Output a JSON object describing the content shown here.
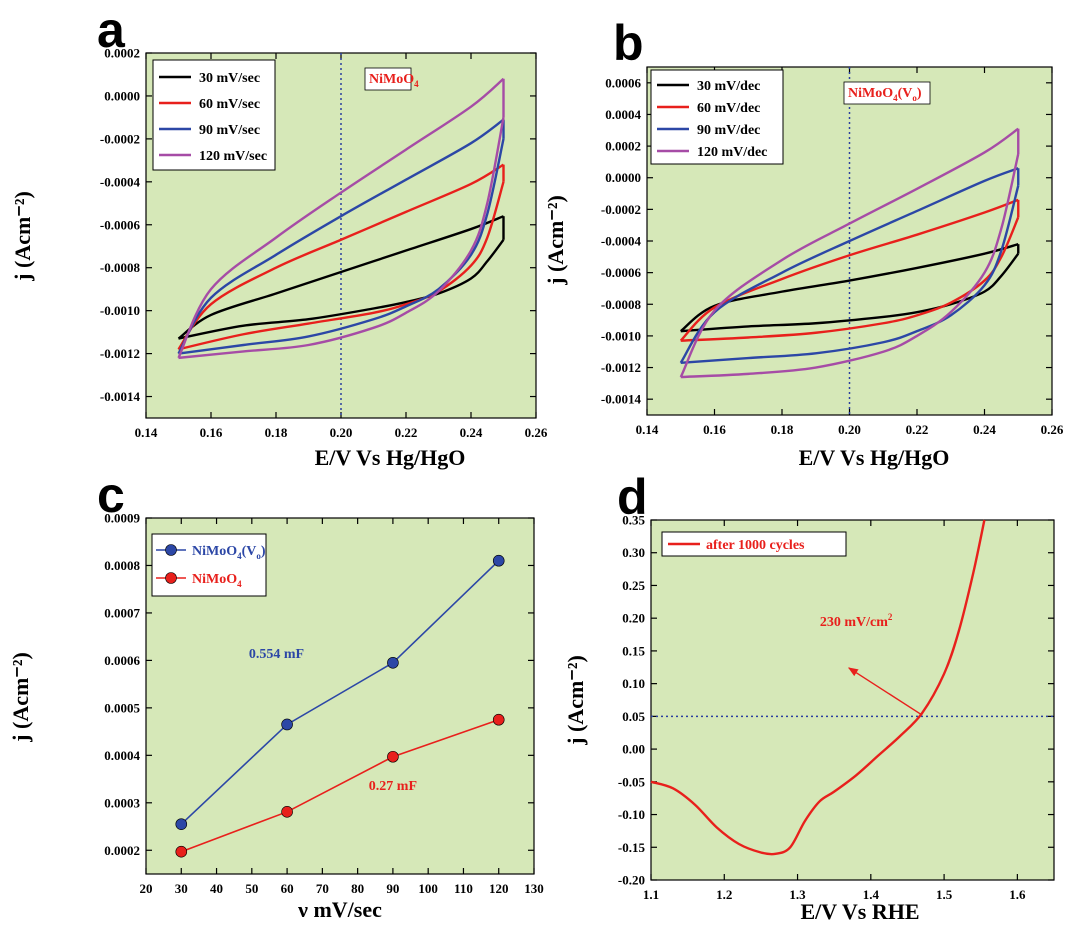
{
  "chart_data": [
    {
      "type": "line",
      "panel": "a",
      "xlabel": "E/V Vs Hg/HgO",
      "ylabel": "j (Acm⁻²)",
      "xlim": [
        0.14,
        0.26
      ],
      "ylim": [
        -0.0015,
        0.0002
      ],
      "xticks": [
        0.14,
        0.16,
        0.18,
        0.2,
        0.22,
        0.24,
        0.26
      ],
      "xtick_labels": [
        "0.14",
        "0.16",
        "0.18",
        "0.20",
        "0.22",
        "0.24",
        "0.26"
      ],
      "yticks": [
        0.0002,
        0.0,
        -0.0002,
        -0.0004,
        -0.0006,
        -0.0008,
        -0.001,
        -0.0012,
        -0.0014
      ],
      "ytick_labels": [
        "0.0002",
        "0.0000",
        "-0.0002",
        "-0.0004",
        "-0.0006",
        "-0.0008",
        "-0.0010",
        "-0.0012",
        "-0.0014"
      ],
      "vline_x": 0.2,
      "annotation": {
        "base": "NiMoO",
        "sub": "4",
        "suffix": ""
      },
      "legend_position": "top-left",
      "series": [
        {
          "name": "30 mV/sec",
          "color": "#000000",
          "upper": {
            "x": [
              0.15,
              0.16,
              0.18,
              0.2,
              0.22,
              0.24,
              0.25
            ],
            "y": [
              -0.00113,
              -0.00102,
              -0.00092,
              -0.00082,
              -0.00072,
              -0.00062,
              -0.00056
            ]
          },
          "lower": {
            "x": [
              0.15,
              0.17,
              0.19,
              0.21,
              0.22,
              0.23,
              0.24,
              0.245,
              0.25
            ],
            "y": [
              -0.00113,
              -0.00107,
              -0.00104,
              -0.00099,
              -0.00096,
              -0.00092,
              -0.00085,
              -0.00077,
              -0.00067
            ]
          }
        },
        {
          "name": "60 mV/sec",
          "color": "#e8201c",
          "upper": {
            "x": [
              0.15,
              0.16,
              0.18,
              0.2,
              0.22,
              0.24,
              0.25
            ],
            "y": [
              -0.00118,
              -0.00097,
              -0.0008,
              -0.00067,
              -0.00054,
              -0.00041,
              -0.00032
            ]
          },
          "lower": {
            "x": [
              0.15,
              0.17,
              0.19,
              0.21,
              0.22,
              0.23,
              0.24,
              0.245,
              0.25
            ],
            "y": [
              -0.00118,
              -0.00111,
              -0.00106,
              -0.00101,
              -0.00097,
              -0.00091,
              -0.00079,
              -0.00066,
              -0.0004
            ]
          }
        },
        {
          "name": "90 mV/sec",
          "color": "#2c47a6",
          "upper": {
            "x": [
              0.15,
              0.16,
              0.18,
              0.2,
              0.22,
              0.24,
              0.25
            ],
            "y": [
              -0.0012,
              -0.00094,
              -0.00074,
              -0.00056,
              -0.00039,
              -0.00022,
              -0.00011
            ]
          },
          "lower": {
            "x": [
              0.15,
              0.17,
              0.19,
              0.21,
              0.22,
              0.23,
              0.24,
              0.245,
              0.25
            ],
            "y": [
              -0.0012,
              -0.00116,
              -0.00112,
              -0.00104,
              -0.00098,
              -0.0009,
              -0.00074,
              -0.00055,
              -0.0002
            ]
          }
        },
        {
          "name": "120 mV/sec",
          "color": "#a64ca6",
          "upper": {
            "x": [
              0.15,
              0.16,
              0.18,
              0.2,
              0.22,
              0.24,
              0.25
            ],
            "y": [
              -0.00122,
              -0.0009,
              -0.00066,
              -0.00045,
              -0.00025,
              -5e-05,
              8e-05
            ]
          },
          "lower": {
            "x": [
              0.15,
              0.17,
              0.19,
              0.21,
              0.22,
              0.23,
              0.24,
              0.245,
              0.25
            ],
            "y": [
              -0.00122,
              -0.00119,
              -0.00116,
              -0.00108,
              -0.00101,
              -0.00091,
              -0.00072,
              -0.0005,
              -0.0001
            ]
          }
        }
      ]
    },
    {
      "type": "line",
      "panel": "b",
      "xlabel": "E/V Vs Hg/HgO",
      "ylabel": "j (Acm⁻²)",
      "xlim": [
        0.14,
        0.26
      ],
      "ylim": [
        -0.0015,
        0.0007
      ],
      "xticks": [
        0.14,
        0.16,
        0.18,
        0.2,
        0.22,
        0.24,
        0.26
      ],
      "xtick_labels": [
        "0.14",
        "0.16",
        "0.18",
        "0.20",
        "0.22",
        "0.24",
        "0.26"
      ],
      "yticks": [
        0.0006,
        0.0004,
        0.0002,
        0.0,
        -0.0002,
        -0.0004,
        -0.0006,
        -0.0008,
        -0.001,
        -0.0012,
        -0.0014
      ],
      "ytick_labels": [
        "0.0006",
        "0.0004",
        "0.0002",
        "0.0000",
        "-0.0002",
        "-0.0004",
        "-0.0006",
        "-0.0008",
        "-0.0010",
        "-0.0012",
        "-0.0014"
      ],
      "vline_x": 0.2,
      "annotation": {
        "base": "NiMoO",
        "sub": "4",
        "suffix": "(V",
        "sub2": "o",
        "suffix2": ")"
      },
      "legend_position": "top-left",
      "series": [
        {
          "name": "30 mV/dec",
          "color": "#000000",
          "upper": {
            "x": [
              0.15,
              0.16,
              0.18,
              0.2,
              0.22,
              0.24,
              0.25
            ],
            "y": [
              -0.00097,
              -0.00081,
              -0.00072,
              -0.00065,
              -0.00057,
              -0.00048,
              -0.00042
            ]
          },
          "lower": {
            "x": [
              0.15,
              0.17,
              0.19,
              0.21,
              0.22,
              0.23,
              0.24,
              0.245,
              0.25
            ],
            "y": [
              -0.00097,
              -0.00094,
              -0.00092,
              -0.00088,
              -0.00085,
              -0.0008,
              -0.00072,
              -0.00062,
              -0.00048
            ]
          }
        },
        {
          "name": "60 mV/dec",
          "color": "#e8201c",
          "upper": {
            "x": [
              0.15,
              0.16,
              0.18,
              0.2,
              0.22,
              0.24,
              0.25
            ],
            "y": [
              -0.00103,
              -0.00082,
              -0.00064,
              -0.00049,
              -0.00036,
              -0.00022,
              -0.00014
            ]
          },
          "lower": {
            "x": [
              0.15,
              0.17,
              0.19,
              0.21,
              0.22,
              0.23,
              0.24,
              0.245,
              0.25
            ],
            "y": [
              -0.00103,
              -0.00101,
              -0.00098,
              -0.00092,
              -0.00087,
              -0.00079,
              -0.00065,
              -0.0005,
              -0.00025
            ]
          }
        },
        {
          "name": "90 mV/dec",
          "color": "#2c47a6",
          "upper": {
            "x": [
              0.15,
              0.16,
              0.18,
              0.2,
              0.22,
              0.24,
              0.25
            ],
            "y": [
              -0.00117,
              -0.00085,
              -0.0006,
              -0.0004,
              -0.00021,
              -2e-05,
              6e-05
            ]
          },
          "lower": {
            "x": [
              0.15,
              0.17,
              0.19,
              0.21,
              0.22,
              0.23,
              0.24,
              0.245,
              0.25
            ],
            "y": [
              -0.00117,
              -0.00114,
              -0.00111,
              -0.00104,
              -0.00097,
              -0.00087,
              -0.00068,
              -0.00046,
              -5e-05
            ]
          }
        },
        {
          "name": "120 mV/dec",
          "color": "#a64ca6",
          "upper": {
            "x": [
              0.15,
              0.16,
              0.18,
              0.2,
              0.22,
              0.24,
              0.25
            ],
            "y": [
              -0.00126,
              -0.00084,
              -0.00052,
              -0.00029,
              -7e-05,
              0.00016,
              0.00031
            ]
          },
          "lower": {
            "x": [
              0.15,
              0.17,
              0.19,
              0.21,
              0.22,
              0.23,
              0.24,
              0.245,
              0.25
            ],
            "y": [
              -0.00126,
              -0.00124,
              -0.0012,
              -0.0011,
              -0.001,
              -0.00085,
              -0.0006,
              -0.00032,
              0.00015
            ]
          }
        }
      ]
    },
    {
      "type": "line",
      "panel": "c",
      "xlabel": "ν mV/sec",
      "ylabel": "j (Acm⁻²)",
      "xlim": [
        20,
        130
      ],
      "ylim": [
        0.00015,
        0.0009
      ],
      "xticks": [
        20,
        30,
        40,
        50,
        60,
        70,
        80,
        90,
        100,
        110,
        120,
        130
      ],
      "xtick_labels": [
        "20",
        "30",
        "40",
        "50",
        "60",
        "70",
        "80",
        "90",
        "100",
        "110",
        "120",
        "130"
      ],
      "yticks": [
        0.0009,
        0.0008,
        0.0007,
        0.0006,
        0.0005,
        0.0004,
        0.0003,
        0.0002
      ],
      "ytick_labels": [
        "0.0009",
        "0.0008",
        "0.0007",
        "0.0006",
        "0.0005",
        "0.0004",
        "0.0003",
        "0.0002"
      ],
      "legend_position": "top-left",
      "series": [
        {
          "name": "NiMoO4(Vo)",
          "label_base": "NiMoO",
          "label_sub": "4",
          "label_suffix": "(V",
          "label_sub2": "o",
          "label_suffix2": ")",
          "color": "#2c47a6",
          "x": [
            30,
            60,
            90,
            120
          ],
          "y": [
            0.000255,
            0.000465,
            0.000595,
            0.00081
          ]
        },
        {
          "name": "NiMoO4",
          "label_base": "NiMoO",
          "label_sub": "4",
          "color": "#e8201c",
          "x": [
            30,
            60,
            90,
            120
          ],
          "y": [
            0.000197,
            0.000281,
            0.000397,
            0.000475
          ]
        }
      ],
      "annotations": [
        {
          "text": "0.554 mF",
          "x": 57,
          "y": 0.000605,
          "color": "#2c47a6"
        },
        {
          "text": "0.27 mF",
          "x": 90,
          "y": 0.000327,
          "color": "#e8201c"
        }
      ]
    },
    {
      "type": "line",
      "panel": "d",
      "xlabel": "E/V Vs RHE",
      "ylabel": "j (Acm⁻²)",
      "xlim": [
        1.1,
        1.65
      ],
      "ylim": [
        -0.2,
        0.35
      ],
      "xticks": [
        1.1,
        1.2,
        1.3,
        1.4,
        1.5,
        1.6
      ],
      "xtick_labels": [
        "1.1",
        "1.2",
        "1.3",
        "1.4",
        "1.5",
        "1.6"
      ],
      "yticks": [
        0.35,
        0.3,
        0.25,
        0.2,
        0.15,
        0.1,
        0.05,
        0.0,
        -0.05,
        -0.1,
        -0.15,
        -0.2
      ],
      "ytick_labels": [
        "0.35",
        "0.30",
        "0.25",
        "0.20",
        "0.15",
        "0.10",
        "0.05",
        "0.00",
        "-0.05",
        "-0.10",
        "-0.15",
        "-0.20"
      ],
      "hline_y": 0.05,
      "legend_position": "top-left",
      "series": [
        {
          "name": "after 1000 cycles",
          "color": "#e8201c",
          "x": [
            1.1,
            1.13,
            1.16,
            1.19,
            1.22,
            1.25,
            1.27,
            1.29,
            1.31,
            1.33,
            1.35,
            1.38,
            1.41,
            1.44,
            1.47,
            1.5,
            1.52,
            1.54,
            1.555
          ],
          "y": [
            -0.05,
            -0.06,
            -0.085,
            -0.12,
            -0.145,
            -0.158,
            -0.16,
            -0.15,
            -0.11,
            -0.08,
            -0.065,
            -0.04,
            -0.01,
            0.02,
            0.055,
            0.115,
            0.18,
            0.27,
            0.35
          ]
        }
      ],
      "annotation": {
        "text": "230 mV/cm",
        "sup": "2",
        "x": 1.38,
        "y": 0.188,
        "color": "#e8201c"
      },
      "arrow": {
        "from": [
          1.47,
          0.052
        ],
        "to": [
          1.37,
          0.124
        ],
        "color": "#e8201c"
      }
    }
  ],
  "panel_letters": [
    "a",
    "b",
    "c",
    "d"
  ]
}
